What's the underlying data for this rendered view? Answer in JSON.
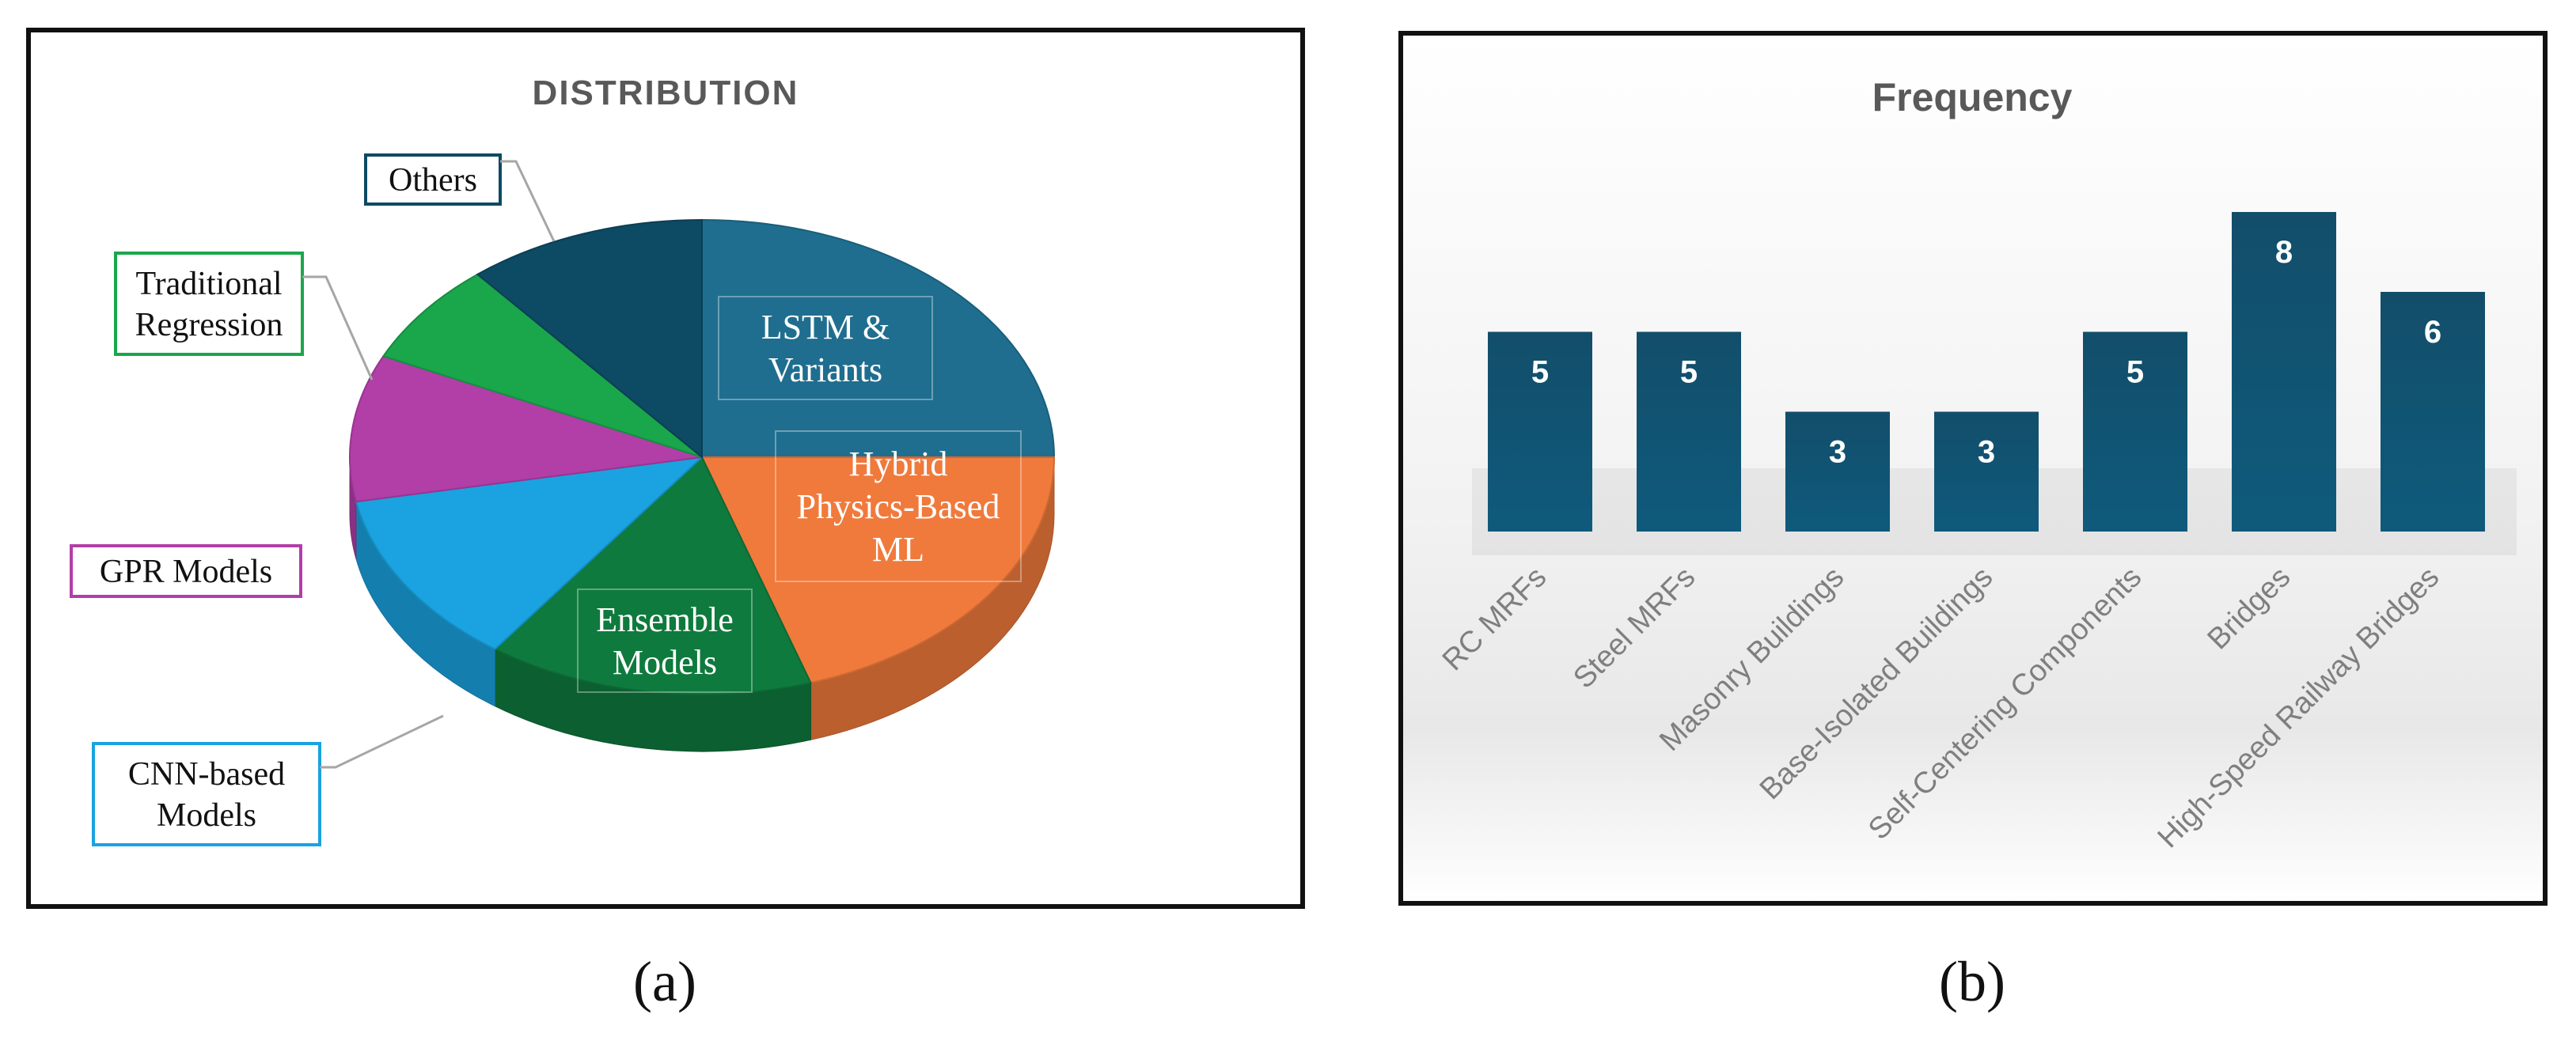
{
  "chart_data": [
    {
      "type": "pie",
      "title": "DISTRIBUTION",
      "caption": "(a)",
      "slices": [
        {
          "label": "LSTM & Variants",
          "label_lines": [
            "LSTM &",
            "Variants"
          ],
          "value": 25,
          "color": "#1f6e8f",
          "label_style": "inner"
        },
        {
          "label": "Hybrid Physics-Based ML",
          "label_lines": [
            "Hybrid",
            "Physics-Based",
            "ML"
          ],
          "value": 20,
          "color": "#f07a3c",
          "label_style": "inner"
        },
        {
          "label": "Ensemble Models",
          "label_lines": [
            "Ensemble",
            "Models"
          ],
          "value": 15,
          "color": "#0f7a3d",
          "label_style": "inner"
        },
        {
          "label": "CNN-based Models",
          "label_lines": [
            "CNN-based",
            "Models"
          ],
          "value": 12,
          "color": "#1aa3e0",
          "label_style": "callout",
          "callout_color": "#1aa3e0"
        },
        {
          "label": "GPR Models",
          "label_lines": [
            "GPR Models"
          ],
          "value": 10,
          "color": "#b23ea8",
          "label_style": "callout",
          "callout_color": "#b23ea8"
        },
        {
          "label": "Traditional Regression",
          "label_lines": [
            "Traditional",
            "Regression"
          ],
          "value": 7,
          "color": "#1aa64b",
          "label_style": "callout",
          "callout_color": "#1aa64b"
        },
        {
          "label": "Others",
          "label_lines": [
            "Others"
          ],
          "value": 11,
          "color": "#0d4a63",
          "label_style": "callout",
          "callout_color": "#0d4a63"
        }
      ]
    },
    {
      "type": "bar",
      "title": "Frequency",
      "caption": "(b)",
      "categories": [
        "RC MRFs",
        "Steel MRFs",
        "Masonry Buildings",
        "Base-Isolated Buildings",
        "Self-Centering Components",
        "Bridges",
        "High-Speed Railway Bridges"
      ],
      "values": [
        5,
        5,
        3,
        3,
        5,
        8,
        6
      ],
      "ylim": [
        0,
        8
      ],
      "grid": false,
      "bar_color": "#124e6a"
    }
  ]
}
